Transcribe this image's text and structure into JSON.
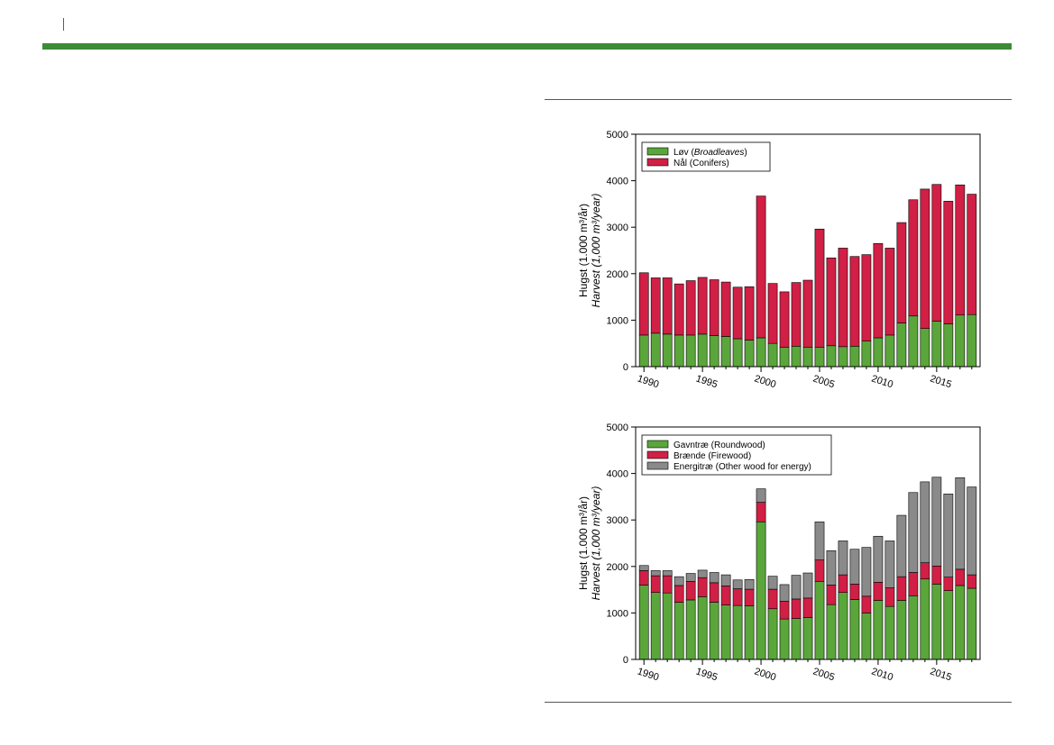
{
  "colors": {
    "accent_bar": "#3d8b37",
    "broadleaves": "#5aa63a",
    "conifers": "#d11f45",
    "roundwood": "#5aa63a",
    "firewood": "#d11f45",
    "energy": "#8a8a8a"
  },
  "chart_data": [
    {
      "type": "bar",
      "stacked": true,
      "ylabel_line1": "Hugst (1.000 m³/år)",
      "ylabel_line2": "Harvest (1,000 m³/year)",
      "ylim": [
        0,
        5000
      ],
      "yticks": [
        "0",
        "1000",
        "2000",
        "3000",
        "4000",
        "5000"
      ],
      "x": [
        1990,
        1991,
        1992,
        1993,
        1994,
        1995,
        1996,
        1997,
        1998,
        1999,
        2000,
        2001,
        2002,
        2003,
        2004,
        2005,
        2006,
        2007,
        2008,
        2009,
        2010,
        2011,
        2012,
        2013,
        2014,
        2015,
        2016,
        2017,
        2018
      ],
      "xticks": [
        "1990",
        "1995",
        "2000",
        "2005",
        "2010",
        "2015"
      ],
      "legend_position": "top-left",
      "series": [
        {
          "name": "Løv (Broadleaves)",
          "legend_plain": "Løv (",
          "legend_italic": "Broadleaves",
          "legend_end": ")",
          "color": "#5aa63a",
          "values": [
            680,
            720,
            700,
            680,
            680,
            700,
            670,
            650,
            600,
            570,
            620,
            500,
            420,
            440,
            420,
            420,
            450,
            430,
            440,
            550,
            620,
            680,
            940,
            1090,
            820,
            980,
            920,
            1110,
            1120
          ]
        },
        {
          "name": "Nål (Conifers)",
          "legend_plain": "Nål (Conifers)",
          "color": "#d11f45",
          "values": [
            1340,
            1190,
            1210,
            1100,
            1170,
            1220,
            1200,
            1170,
            1110,
            1150,
            3050,
            1290,
            1190,
            1370,
            1440,
            2540,
            1890,
            2120,
            1930,
            1860,
            2030,
            1870,
            2160,
            2500,
            3000,
            2940,
            2640,
            2800,
            2590
          ]
        }
      ]
    },
    {
      "type": "bar",
      "stacked": true,
      "ylabel_line1": "Hugst (1.000 m³/år)",
      "ylabel_line2": "Harvest (1,000 m³/year)",
      "ylim": [
        0,
        5000
      ],
      "yticks": [
        "0",
        "1000",
        "2000",
        "3000",
        "4000",
        "5000"
      ],
      "x": [
        1990,
        1991,
        1992,
        1993,
        1994,
        1995,
        1996,
        1997,
        1998,
        1999,
        2000,
        2001,
        2002,
        2003,
        2004,
        2005,
        2006,
        2007,
        2008,
        2009,
        2010,
        2011,
        2012,
        2013,
        2014,
        2015,
        2016,
        2017,
        2018
      ],
      "xticks": [
        "1990",
        "1995",
        "2000",
        "2005",
        "2010",
        "2015"
      ],
      "legend_position": "top-left",
      "series": [
        {
          "name": "Gavntræ (Roundwood)",
          "legend_plain": "Gavntræ (Roundwood)",
          "color": "#5aa63a",
          "values": [
            1600,
            1440,
            1430,
            1230,
            1280,
            1350,
            1230,
            1170,
            1160,
            1150,
            2960,
            1090,
            870,
            880,
            900,
            1680,
            1180,
            1440,
            1290,
            1000,
            1270,
            1140,
            1270,
            1370,
            1730,
            1620,
            1480,
            1590,
            1530
          ]
        },
        {
          "name": "Brænde (Firewood)",
          "legend_plain": "Brænde (Firewood)",
          "color": "#d11f45",
          "values": [
            310,
            360,
            370,
            360,
            400,
            410,
            420,
            410,
            360,
            360,
            420,
            420,
            380,
            420,
            420,
            460,
            420,
            380,
            330,
            360,
            390,
            400,
            510,
            500,
            350,
            390,
            290,
            350,
            290
          ]
        },
        {
          "name": "Energitræ (Other wood for energy)",
          "legend_plain": "Energitræ (Other wood for energy)",
          "color": "#8a8a8a",
          "values": [
            110,
            110,
            110,
            190,
            170,
            160,
            220,
            240,
            190,
            210,
            290,
            280,
            360,
            510,
            540,
            820,
            740,
            730,
            750,
            1050,
            990,
            1010,
            1320,
            1720,
            1740,
            1910,
            1790,
            1970,
            1890
          ]
        }
      ]
    }
  ]
}
